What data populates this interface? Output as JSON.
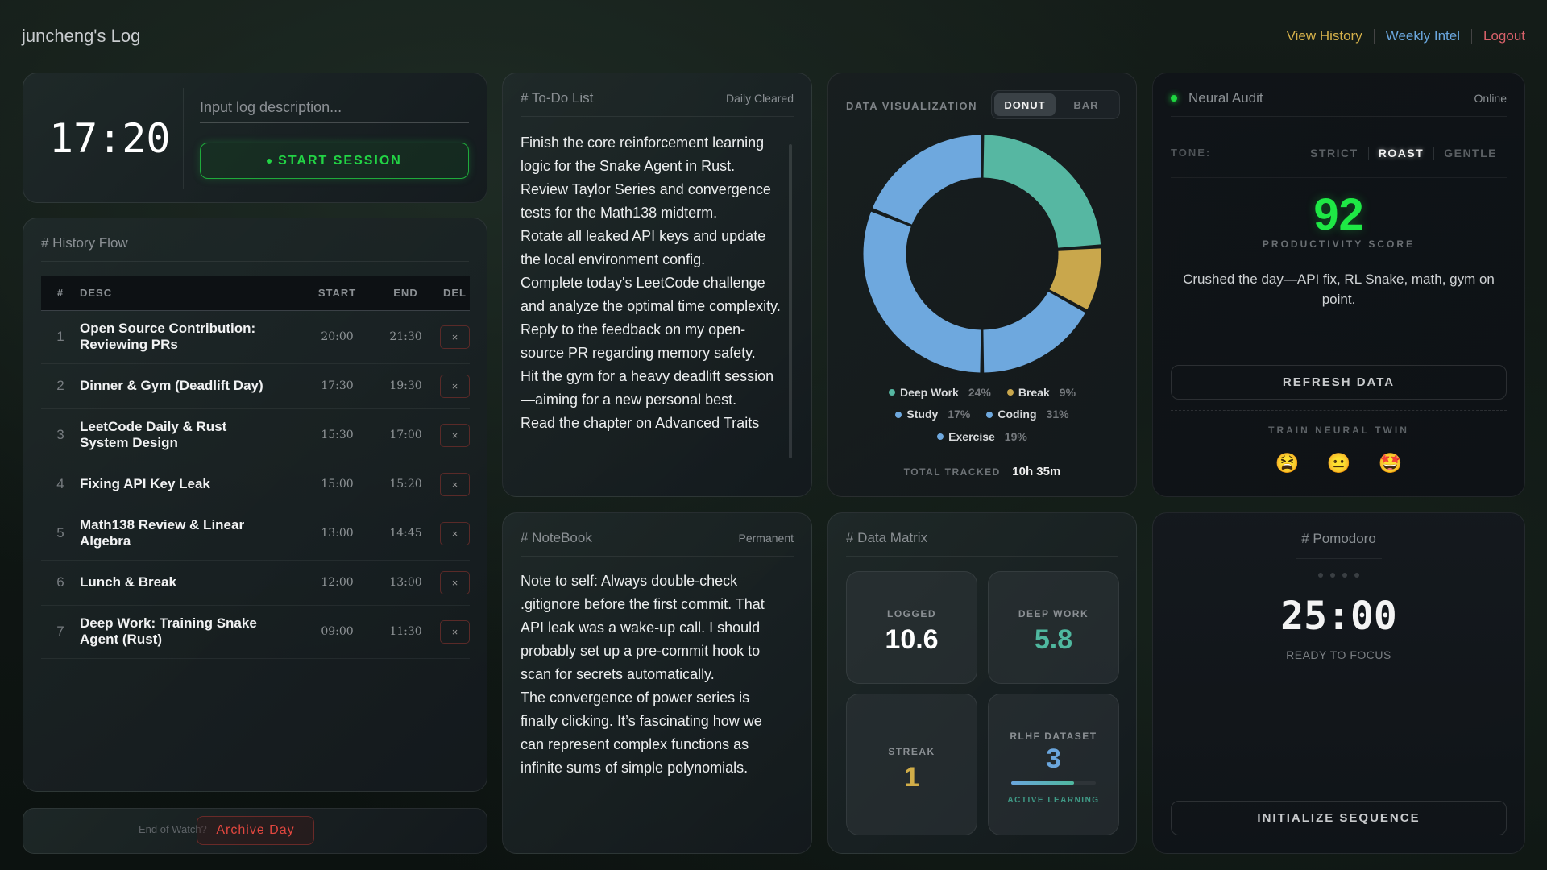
{
  "header": {
    "title": "juncheng's Log",
    "nav": [
      {
        "label": "View History",
        "color": "#d4b04a"
      },
      {
        "label": "Weekly Intel",
        "color": "#6aa6dd"
      },
      {
        "label": "Logout",
        "color": "#d8616a"
      }
    ]
  },
  "session": {
    "clock": "17:20",
    "input_placeholder": "Input log description...",
    "start_label": "START SESSION"
  },
  "history": {
    "title": "# History Flow",
    "columns": [
      "#",
      "DESC",
      "START",
      "END",
      "DEL"
    ],
    "delete_icon": "×",
    "rows": [
      {
        "n": "1",
        "desc": "Open Source Contribution: Reviewing PRs",
        "start": "20:00",
        "end": "21:30"
      },
      {
        "n": "2",
        "desc": "Dinner & Gym (Deadlift Day)",
        "start": "17:30",
        "end": "19:30"
      },
      {
        "n": "3",
        "desc": "LeetCode Daily & Rust System Design",
        "start": "15:30",
        "end": "17:00"
      },
      {
        "n": "4",
        "desc": "Fixing API Key Leak",
        "start": "15:00",
        "end": "15:20"
      },
      {
        "n": "5",
        "desc": "Math138 Review & Linear Algebra",
        "start": "13:00",
        "end": "14:45"
      },
      {
        "n": "6",
        "desc": "Lunch & Break",
        "start": "12:00",
        "end": "13:00"
      },
      {
        "n": "7",
        "desc": "Deep Work: Training Snake Agent (Rust)",
        "start": "09:00",
        "end": "11:30"
      }
    ]
  },
  "archive": {
    "prompt": "End of Watch?",
    "button": "Archive Day"
  },
  "todo": {
    "title": "# To-Do List",
    "status": "Daily Cleared",
    "items": [
      "Finish the core reinforcement learning logic for the Snake Agent in Rust.",
      "Review Taylor Series and convergence tests for the Math138 midterm.",
      "Rotate all leaked API keys and update the local environment config.",
      "Complete today's LeetCode challenge and analyze the optimal time complexity.",
      "Reply to the feedback on my open-source PR regarding memory safety.",
      "Hit the gym for a heavy deadlift session—aiming for a new personal best.",
      "Read the chapter on Advanced Traits"
    ]
  },
  "notebook": {
    "title": "# NoteBook",
    "status": "Permanent",
    "paragraphs": [
      "Note to self: Always double-check .gitignore before the first commit. That API leak was a wake-up call. I should probably set up a pre-commit hook to scan for secrets automatically.",
      "The convergence of power series is finally clicking. It’s fascinating how we can represent complex functions as infinite sums of simple polynomials."
    ]
  },
  "viz": {
    "title": "DATA VISUALIZATION",
    "toggle": [
      "DONUT",
      "BAR"
    ],
    "active": "DONUT",
    "total_label": "TOTAL TRACKED",
    "total_value": "10h 35m"
  },
  "chart_data": {
    "type": "pie",
    "donut": true,
    "slices": [
      {
        "name": "Deep Work",
        "value": 24,
        "label": "24%",
        "color": "#56b7a2"
      },
      {
        "name": "Break",
        "value": 9,
        "label": "9%",
        "color": "#c9a74c"
      },
      {
        "name": "Study",
        "value": 17,
        "label": "17%",
        "color": "#6ea8de"
      },
      {
        "name": "Coding",
        "value": 31,
        "label": "31%",
        "color": "#6ea8de"
      },
      {
        "name": "Exercise",
        "value": 19,
        "label": "19%",
        "color": "#6ea8de"
      }
    ]
  },
  "matrix": {
    "title": "# Data Matrix",
    "tiles": [
      {
        "label": "LOGGED",
        "value": "10.6",
        "color": "#ffffff"
      },
      {
        "label": "DEEP WORK",
        "value": "5.8",
        "color": "#4fb89f"
      },
      {
        "label": "STREAK",
        "value": "1",
        "color": "#d1ad48"
      },
      {
        "label": "RLHF DATASET",
        "value": "3",
        "color": "#6aa6dd",
        "progress": 0.74,
        "sub": "ACTIVE LEARNING"
      }
    ]
  },
  "audit": {
    "title": "Neural Audit",
    "status": "Online",
    "tone_label": "TONE:",
    "tones": [
      "STRICT",
      "ROAST",
      "GENTLE"
    ],
    "active_tone": "ROAST",
    "score": "92",
    "score_label": "PRODUCTIVITY SCORE",
    "summary": "Crushed the day—API fix, RL Snake, math, gym on point.",
    "refresh": "REFRESH DATA",
    "train_label": "TRAIN NEURAL TWIN",
    "feedback": [
      "😫",
      "😐",
      "🤩"
    ]
  },
  "pomodoro": {
    "title": "# Pomodoro",
    "time": "25:00",
    "status": "READY TO FOCUS",
    "button": "INITIALIZE SEQUENCE",
    "completed_sessions": 0,
    "total_sessions": 4
  }
}
